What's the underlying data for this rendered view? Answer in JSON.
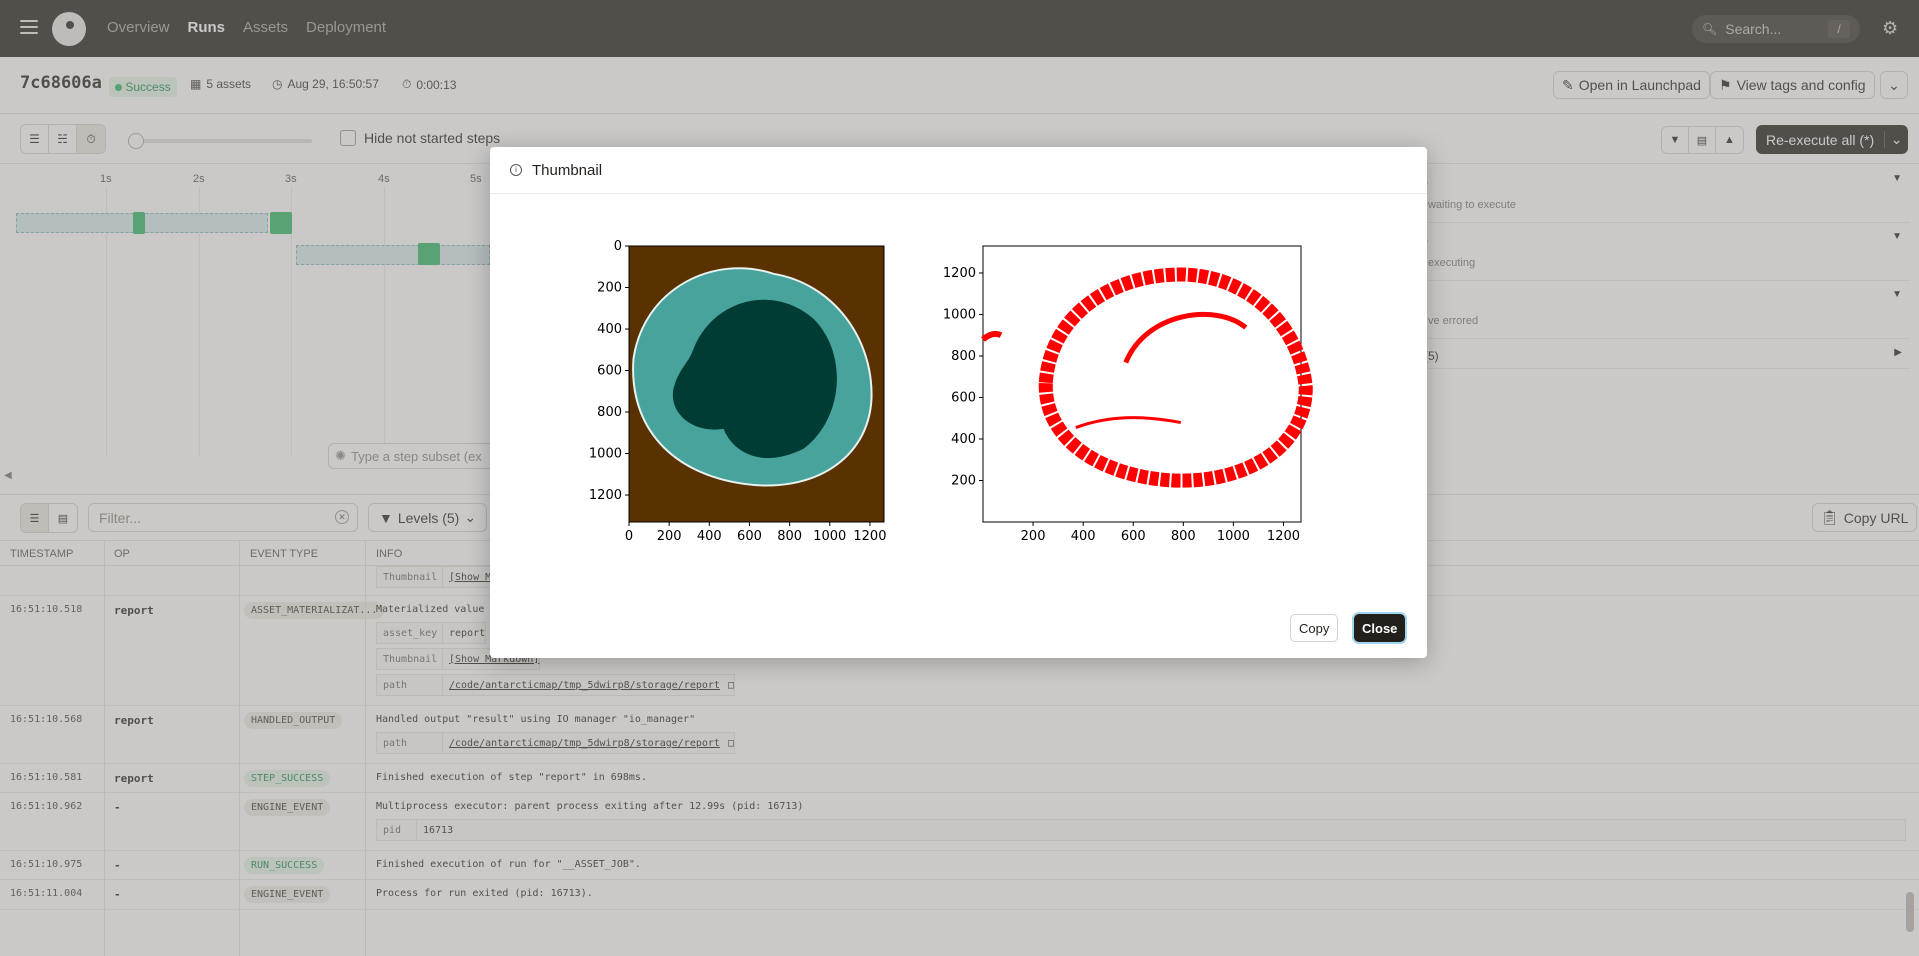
{
  "nav": {
    "links": [
      "Overview",
      "Runs",
      "Assets",
      "Deployment"
    ],
    "active": "Runs",
    "search_placeholder": "Search...",
    "search_shortcut": "/"
  },
  "run": {
    "id": "7c68606a",
    "status": "Success",
    "assets": "5 assets",
    "started": "Aug 29, 16:50:57",
    "duration": "0:00:13",
    "open_launchpad": "Open in Launchpad",
    "view_tags": "View tags and config"
  },
  "toolbar": {
    "hide_not_started": "Hide not started steps",
    "reexecute": "Re-execute all (*)"
  },
  "gantt": {
    "ticks": [
      "1s",
      "2s",
      "3s",
      "4s",
      "5s"
    ],
    "subset_placeholder": "Type a step subset (ex",
    "side": [
      {
        "title": ")",
        "sub": "waiting to execute"
      },
      {
        "title": ")",
        "sub": "executing"
      },
      {
        "title": "",
        "sub": "ve errored"
      },
      {
        "title": "(5)",
        "sub": ""
      }
    ]
  },
  "logs": {
    "filter_placeholder": "Filter...",
    "levels": "Levels (5)",
    "copy_url": "Copy URL",
    "columns": [
      "TIMESTAMP",
      "OP",
      "EVENT TYPE",
      "INFO"
    ],
    "partial_row": {
      "key": "Thumbnail",
      "value": "[Show M"
    },
    "rows": [
      {
        "ts": "16:51:10.518",
        "op": "report",
        "event": "ASSET_MATERIALIZAT...",
        "info": "Materialized value r",
        "kvs": [
          {
            "k": "asset_key",
            "v": "report"
          },
          {
            "k": "Thumbnail",
            "v": "[Show Markdown]"
          },
          {
            "k": "path",
            "v": "/code/antarcticmap/tmp_5dwirp8/storage/report"
          }
        ]
      },
      {
        "ts": "16:51:10.568",
        "op": "report",
        "event": "HANDLED_OUTPUT",
        "info": "Handled output \"result\" using IO manager \"io_manager\"",
        "kvs": [
          {
            "k": "path",
            "v": "/code/antarcticmap/tmp_5dwirp8/storage/report"
          }
        ]
      },
      {
        "ts": "16:51:10.581",
        "op": "report",
        "event": "STEP_SUCCESS",
        "info": "Finished execution of step \"report\" in 698ms.",
        "kvs": []
      },
      {
        "ts": "16:51:10.962",
        "op": "-",
        "event": "ENGINE_EVENT",
        "info": "Multiprocess executor: parent process exiting after 12.99s (pid: 16713)",
        "kvs": [
          {
            "k": "pid",
            "v": "16713"
          }
        ]
      },
      {
        "ts": "16:51:10.975",
        "op": "-",
        "event": "RUN_SUCCESS",
        "info": "Finished execution of run for \"__ASSET_JOB\".",
        "kvs": []
      },
      {
        "ts": "16:51:11.004",
        "op": "-",
        "event": "ENGINE_EVENT",
        "info": "Process for run exited (pid: 16713).",
        "kvs": []
      }
    ]
  },
  "dialog": {
    "title": "Thumbnail",
    "copy": "Copy",
    "close": "Close"
  },
  "chart_data": [
    {
      "type": "heatmap",
      "x_ticks": [
        "0",
        "200",
        "400",
        "600",
        "800",
        "1000",
        "1200"
      ],
      "y_ticks": [
        "0",
        "200",
        "400",
        "600",
        "800",
        "1000",
        "1200"
      ],
      "xlim": [
        0,
        1270
      ],
      "ylim": [
        1330,
        0
      ],
      "colors": {
        "background": "#5a3200",
        "ice": "#48a39d",
        "interior": "#003c33"
      }
    },
    {
      "type": "scatter",
      "x_ticks": [
        "200",
        "400",
        "600",
        "800",
        "1000",
        "1200"
      ],
      "y_ticks": [
        "200",
        "400",
        "600",
        "800",
        "1000",
        "1200"
      ],
      "xlim": [
        0,
        1270
      ],
      "ylim": [
        0,
        1330
      ],
      "colors": {
        "points": "#ff0000"
      }
    }
  ]
}
